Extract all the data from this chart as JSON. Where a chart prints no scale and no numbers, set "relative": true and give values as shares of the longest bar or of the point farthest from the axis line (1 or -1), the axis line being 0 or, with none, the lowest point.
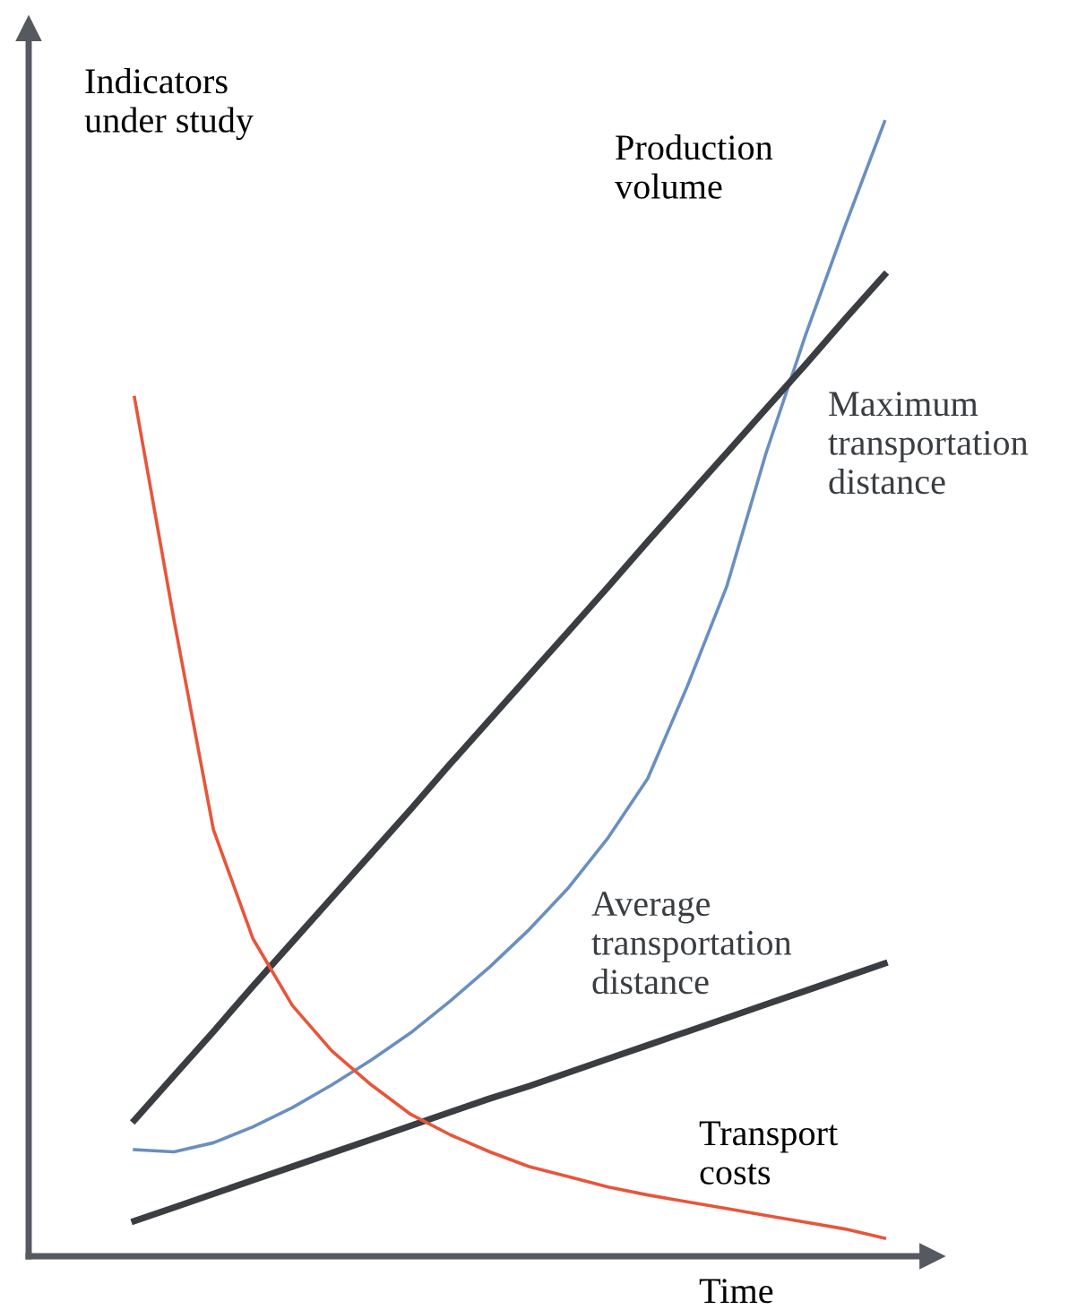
{
  "chart_data": {
    "type": "line",
    "relative": true,
    "xlabel": "Time",
    "ylabel": "Indicators under study",
    "legend": false,
    "grid": false,
    "categories": [
      null,
      null,
      null,
      null,
      null,
      null,
      null,
      null,
      null,
      null,
      null,
      null,
      null,
      null,
      null,
      null,
      null,
      null,
      null,
      null
    ],
    "series": [
      {
        "name": "Production volume",
        "color": "#6a8fc0",
        "values": [
          0.094,
          0.092,
          0.1,
          0.114,
          0.131,
          0.151,
          0.173,
          0.197,
          0.225,
          0.255,
          0.288,
          0.325,
          0.369,
          0.421,
          0.502,
          0.59,
          0.708,
          0.812,
          0.908,
          1.0
        ]
      },
      {
        "name": "Maximum transportation distance",
        "color": "#3a3d42",
        "values": [
          0.12,
          0.159,
          0.198,
          0.238,
          0.277,
          0.316,
          0.355,
          0.394,
          0.434,
          0.473,
          0.512,
          0.551,
          0.59,
          0.63,
          0.669,
          0.708,
          0.747,
          0.786,
          0.826,
          0.865
        ]
      },
      {
        "name": "Average transportation distance",
        "color": "#3a3d42",
        "values": [
          0.031,
          0.043,
          0.055,
          0.067,
          0.079,
          0.091,
          0.103,
          0.115,
          0.127,
          0.139,
          0.15,
          0.162,
          0.174,
          0.186,
          0.198,
          0.21,
          0.222,
          0.234,
          0.246,
          0.258
        ]
      },
      {
        "name": "Transport costs",
        "color": "#e8553a",
        "values": [
          0.757,
          0.561,
          0.376,
          0.28,
          0.221,
          0.181,
          0.151,
          0.125,
          0.107,
          0.092,
          0.079,
          0.07,
          0.061,
          0.054,
          0.048,
          0.042,
          0.036,
          0.03,
          0.024,
          0.016
        ]
      }
    ]
  }
}
